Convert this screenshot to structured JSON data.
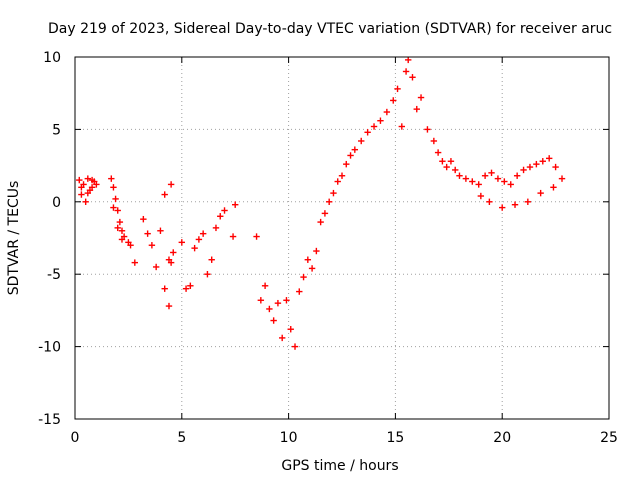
{
  "chart_data": {
    "type": "scatter",
    "title": "Day 219 of 2023, Sidereal Day-to-day VTEC variation (SDTVAR) for receiver aruc",
    "xlabel": "GPS time / hours",
    "ylabel": "SDTVAR / TECUs",
    "xlim": [
      0,
      25
    ],
    "ylim": [
      -15,
      10
    ],
    "xticks": [
      0,
      5,
      10,
      15,
      20,
      25
    ],
    "yticks": [
      -15,
      -10,
      -5,
      0,
      5,
      10
    ],
    "xtick_labels": [
      "0",
      "5",
      "10",
      "15",
      "20",
      "25"
    ],
    "ytick_labels": [
      "-15",
      "-10",
      "-5",
      "0",
      "5",
      "10"
    ],
    "grid": true,
    "marker": "plus",
    "color": "#ff0000",
    "series": [
      {
        "name": "SDTVAR",
        "x": [
          0.2,
          0.3,
          0.4,
          0.5,
          0.6,
          0.7,
          0.8,
          0.9,
          1.0,
          0.3,
          0.6,
          0.8,
          1.7,
          1.8,
          1.9,
          2.0,
          2.1,
          2.2,
          2.3,
          2.5,
          2.6,
          2.8,
          1.8,
          2.0,
          2.2,
          3.2,
          3.4,
          3.6,
          3.8,
          4.0,
          4.2,
          4.4,
          4.5,
          4.6,
          4.2,
          4.4,
          4.5,
          5.0,
          5.2,
          5.4,
          5.6,
          5.8,
          6.0,
          6.2,
          6.4,
          6.6,
          6.8,
          7.0,
          7.5,
          7.4,
          8.5,
          8.7,
          8.9,
          9.1,
          9.3,
          9.5,
          9.7,
          9.9,
          10.1,
          10.3,
          10.5,
          10.7,
          10.9,
          11.1,
          11.3,
          11.5,
          11.7,
          11.9,
          12.1,
          12.3,
          12.5,
          12.7,
          12.9,
          13.1,
          13.4,
          13.7,
          14.0,
          14.3,
          14.6,
          14.9,
          15.1,
          15.3,
          15.5,
          15.6,
          15.8,
          16.0,
          16.2,
          16.5,
          16.8,
          17.0,
          17.2,
          17.4,
          17.6,
          17.8,
          18.0,
          18.3,
          18.6,
          18.9,
          19.2,
          19.5,
          19.8,
          20.1,
          20.4,
          20.7,
          21.0,
          21.3,
          21.6,
          21.9,
          22.2,
          22.5,
          22.8,
          19.0,
          19.4,
          20.0,
          20.6,
          21.2,
          21.8,
          22.4
        ],
        "y": [
          1.5,
          0.5,
          1.2,
          0.0,
          1.6,
          0.8,
          1.0,
          1.4,
          1.2,
          1.0,
          0.6,
          1.5,
          1.6,
          1.0,
          0.2,
          -0.6,
          -1.4,
          -2.0,
          -2.4,
          -2.8,
          -3.0,
          -4.2,
          -0.4,
          -1.8,
          -2.6,
          -1.2,
          -2.2,
          -3.0,
          -4.5,
          -2.0,
          0.5,
          -4.0,
          1.2,
          -3.5,
          -6.0,
          -7.2,
          -4.2,
          -2.8,
          -6.0,
          -5.8,
          -3.2,
          -2.6,
          -2.2,
          -5.0,
          -4.0,
          -1.8,
          -1.0,
          -0.6,
          -0.2,
          -2.4,
          -2.4,
          -6.8,
          -5.8,
          -7.4,
          -8.2,
          -7.0,
          -9.4,
          -6.8,
          -8.8,
          -10.0,
          -6.2,
          -5.2,
          -4.0,
          -4.6,
          -3.4,
          -1.4,
          -0.8,
          0.0,
          0.6,
          1.4,
          1.8,
          2.6,
          3.2,
          3.6,
          4.2,
          4.8,
          5.2,
          5.6,
          6.2,
          7.0,
          7.8,
          5.2,
          9.0,
          9.8,
          8.6,
          6.4,
          7.2,
          5.0,
          4.2,
          3.4,
          2.8,
          2.4,
          2.8,
          2.2,
          1.8,
          1.6,
          1.4,
          1.2,
          1.8,
          2.0,
          1.6,
          1.4,
          1.2,
          1.8,
          2.2,
          2.4,
          2.6,
          2.8,
          3.0,
          2.4,
          1.6,
          0.4,
          0.0,
          -0.4,
          -0.2,
          0.0,
          0.6,
          1.0
        ]
      }
    ]
  }
}
